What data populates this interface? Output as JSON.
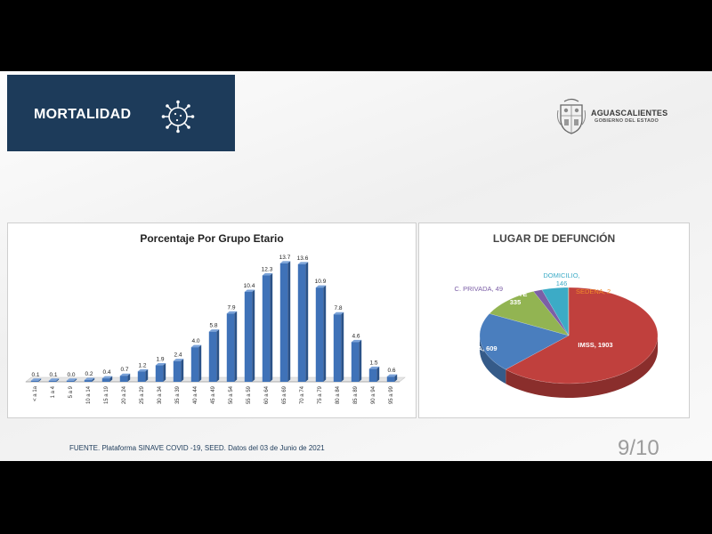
{
  "header": {
    "title": "MORTALIDAD",
    "icon": "virus-icon",
    "color": "#1d3b5a"
  },
  "logo": {
    "name": "AGUASCALIENTES",
    "subtitle": "GOBIERNO DEL ESTADO",
    "icon": "coat-of-arms-icon"
  },
  "footer": {
    "source": "FUENTE. Plataforma SINAVE COVID -19, SEED. Datos del 03 de Junio de 2021",
    "page": "9/10"
  },
  "chart_data": [
    {
      "type": "bar",
      "title": "Porcentaje Por Grupo Etario",
      "categories": [
        "< a 1a",
        "1 a 4",
        "5 a 9",
        "10 a 14",
        "15 a 19",
        "20 a 24",
        "25 a 29",
        "30 a 34",
        "35 a 39",
        "40 a 44",
        "45 a 49",
        "50 a 54",
        "55 a 59",
        "60 a 64",
        "65 a 69",
        "70 a 74",
        "75 a 79",
        "80 a 84",
        "85 a 89",
        "90 a 94",
        "95 a 99"
      ],
      "values": [
        0.1,
        0.1,
        0.0,
        0.2,
        0.4,
        0.7,
        1.2,
        1.9,
        2.4,
        4.0,
        5.8,
        7.9,
        10.4,
        12.3,
        13.7,
        13.6,
        10.9,
        7.8,
        4.6,
        1.5,
        0.6
      ],
      "value_labels": [
        "0.1",
        "0.1",
        "0.0",
        "0.2",
        "0.4",
        "0.7",
        "1.2",
        "1.9",
        "2.4",
        "4.0",
        "5.8",
        "7.9",
        "10.4",
        "12.3",
        "13.7",
        "13.6",
        "10.9",
        "7.8",
        "4.6",
        "1.5",
        "0.6"
      ],
      "ylim": [
        0,
        14
      ],
      "bar_color": "#3f72b8",
      "grid": false,
      "legend": "none"
    },
    {
      "type": "pie",
      "title": "LUGAR DE DEFUNCIÓN",
      "style": "3d",
      "slices": [
        {
          "label": "IMSS",
          "value": 1903,
          "text": "IMSS, 1903",
          "color": "#c0403d",
          "label_color": "#ffffff"
        },
        {
          "label": "ISSEA",
          "value": 609,
          "text": "ISSEA, 609",
          "color": "#4a7ebe",
          "label_color": "#ffffff"
        },
        {
          "label": "ISSSTE",
          "value": 335,
          "text": "ISSSTE 335",
          "color": "#92b452",
          "label_color": "#ffffff"
        },
        {
          "label": "C. PRIVADA",
          "value": 49,
          "text": "C. PRIVADA, 49",
          "color": "#7c5fa6",
          "label_color": "#7c5fa6"
        },
        {
          "label": "DOMICILIO",
          "value": 146,
          "text": "DOMICILIO, 146",
          "color": "#3cabc6",
          "label_color": "#3cabc6"
        },
        {
          "label": "SEDENA",
          "value": 2,
          "text": "SEDENA, 2",
          "color": "#f08a2a",
          "label_color": "#f08a2a"
        }
      ],
      "legend": "none"
    }
  ]
}
